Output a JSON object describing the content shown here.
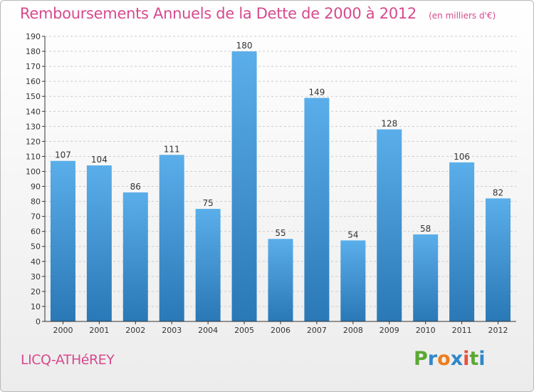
{
  "header": {
    "title": "Remboursements Annuels de la Dette de 2000 à 2012",
    "subtitle": "(en milliers d'€)"
  },
  "footer": {
    "commune": "LICQ-ATHéREY",
    "logo_text": "Proxiti",
    "logo_colors": [
      "#5aa832",
      "#2f88c8",
      "#ef7d1a",
      "#2f88c8",
      "#e84f3d",
      "#5aa832",
      "#2f88c8"
    ]
  },
  "colors": {
    "bar_top": "#5aaee9",
    "bar_bottom": "#2a78b6",
    "axis": "#333333",
    "grid": "#cccccc"
  },
  "chart_data": {
    "type": "bar",
    "categories": [
      "2000",
      "2001",
      "2002",
      "2003",
      "2004",
      "2005",
      "2006",
      "2007",
      "2008",
      "2009",
      "2010",
      "2011",
      "2012"
    ],
    "values": [
      107,
      104,
      86,
      111,
      75,
      180,
      55,
      149,
      54,
      128,
      58,
      106,
      82
    ],
    "data_labels": [
      "107",
      "104",
      "86",
      "111",
      "75",
      "180",
      "55",
      "149",
      "54",
      "128",
      "58",
      "106",
      "82"
    ],
    "ylim": [
      0,
      190
    ],
    "yticks": [
      0,
      10,
      20,
      30,
      40,
      50,
      60,
      70,
      80,
      90,
      100,
      110,
      120,
      130,
      140,
      150,
      160,
      170,
      180,
      190
    ],
    "ytick_labels": [
      "0",
      "10",
      "20",
      "30",
      "40",
      "50",
      "60",
      "70",
      "80",
      "90",
      "100",
      "110",
      "120",
      "130",
      "140",
      "150",
      "160",
      "170",
      "180",
      "190"
    ],
    "grid": true,
    "xlabel": "",
    "ylabel": ""
  }
}
